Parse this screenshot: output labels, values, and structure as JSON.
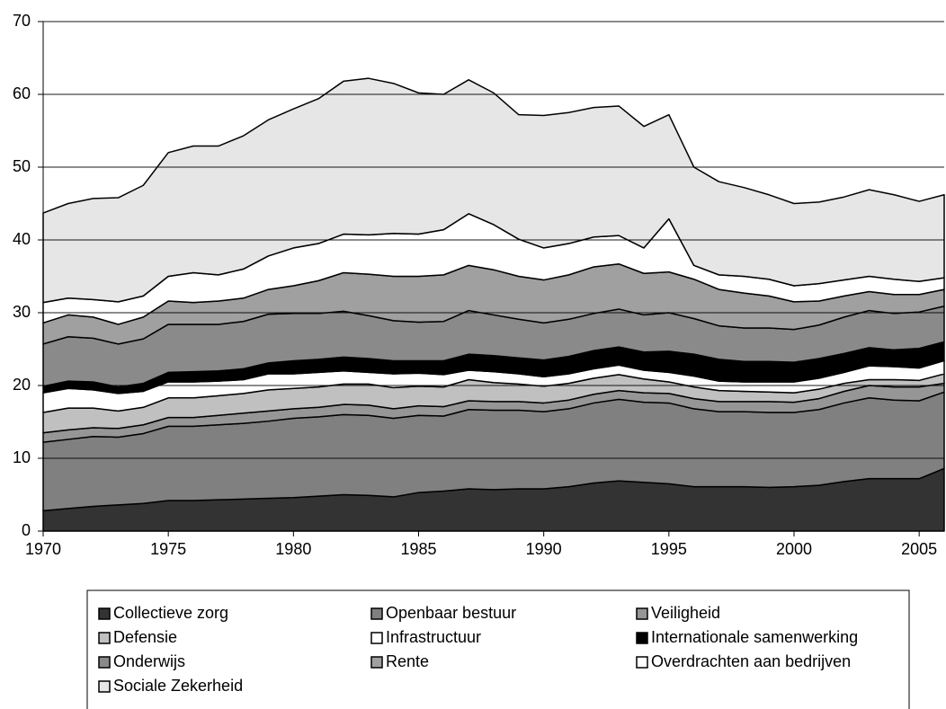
{
  "chart_data": {
    "type": "stacked_area",
    "x": [
      1970,
      1971,
      1972,
      1973,
      1974,
      1975,
      1976,
      1977,
      1978,
      1979,
      1980,
      1981,
      1982,
      1983,
      1984,
      1985,
      1986,
      1987,
      1988,
      1989,
      1990,
      1991,
      1992,
      1993,
      1994,
      1995,
      1996,
      1997,
      1998,
      1999,
      2000,
      2001,
      2002,
      2003,
      2004,
      2005,
      2006
    ],
    "xlim": [
      1970,
      2006
    ],
    "xticks": [
      1970,
      1975,
      1980,
      1985,
      1990,
      1995,
      2000,
      2005
    ],
    "ylim": [
      0,
      70
    ],
    "yticks": [
      0,
      10,
      20,
      30,
      40,
      50,
      60,
      70
    ],
    "grid": true,
    "legend": "bottom",
    "series": [
      {
        "name": "Collectieve zorg",
        "color": "#333333",
        "values": [
          2.8,
          3.1,
          3.4,
          3.6,
          3.8,
          4.2,
          4.2,
          4.3,
          4.4,
          4.5,
          4.6,
          4.8,
          5,
          4.9,
          4.7,
          5.3,
          5.5,
          5.8,
          5.7,
          5.8,
          5.8,
          6.1,
          6.6,
          6.9,
          6.7,
          6.5,
          6.1,
          6.1,
          6.1,
          6,
          6.1,
          6.3,
          6.8,
          7.2,
          7.2,
          7.2,
          8.6
        ]
      },
      {
        "name": "Openbaar bestuur",
        "color": "#808080",
        "values": [
          9.4,
          9.5,
          9.6,
          9.3,
          9.6,
          10.2,
          10.2,
          10.3,
          10.4,
          10.6,
          10.9,
          10.9,
          11,
          11,
          10.8,
          10.6,
          10.3,
          10.9,
          10.9,
          10.8,
          10.6,
          10.7,
          11,
          11.2,
          11,
          11.1,
          10.7,
          10.3,
          10.3,
          10.3,
          10.2,
          10.4,
          10.8,
          11.1,
          10.8,
          10.7,
          10.5
        ]
      },
      {
        "name": "Veiligheid",
        "color": "#969696",
        "values": [
          1.3,
          1.3,
          1.2,
          1.2,
          1.2,
          1.2,
          1.2,
          1.3,
          1.4,
          1.4,
          1.3,
          1.3,
          1.4,
          1.4,
          1.3,
          1.3,
          1.3,
          1.2,
          1.2,
          1.2,
          1.2,
          1.2,
          1.2,
          1.2,
          1.3,
          1.3,
          1.4,
          1.4,
          1.4,
          1.5,
          1.4,
          1.5,
          1.6,
          1.7,
          1.8,
          1.9,
          1.2
        ]
      },
      {
        "name": "Defensie",
        "color": "#c0c0c0",
        "values": [
          2.8,
          3,
          2.7,
          2.4,
          2.4,
          2.7,
          2.7,
          2.7,
          2.7,
          2.9,
          2.8,
          2.8,
          2.8,
          2.9,
          2.9,
          2.7,
          2.7,
          2.9,
          2.6,
          2.4,
          2.3,
          2.3,
          2.2,
          2.2,
          1.9,
          1.6,
          1.6,
          1.5,
          1.4,
          1.3,
          1.3,
          1.3,
          1.1,
          0.8,
          1.0,
          0.9,
          1.3
        ]
      },
      {
        "name": "Infrastructuur",
        "color": "#ffffff",
        "values": [
          2.7,
          2.7,
          2.5,
          2.4,
          2.2,
          2.2,
          2.2,
          2,
          1.9,
          2.2,
          2,
          2,
          1.8,
          1.6,
          1.9,
          1.8,
          1.7,
          1.3,
          1.5,
          1.4,
          1.3,
          1.3,
          1.3,
          1.3,
          1.2,
          1.3,
          1.5,
          1.3,
          1.3,
          1.4,
          1.5,
          1.5,
          1.5,
          1.9,
          1.8,
          1.7,
          1.8
        ]
      },
      {
        "name": "Internationale samenwerking",
        "color": "#000000",
        "values": [
          0.9,
          1,
          1.1,
          0.9,
          1.1,
          1.3,
          1.4,
          1.4,
          1.5,
          1.5,
          1.8,
          1.8,
          1.9,
          1.9,
          1.8,
          1.7,
          1.9,
          2.2,
          2.2,
          2.2,
          2.3,
          2.4,
          2.5,
          2.5,
          2.5,
          2.9,
          3,
          3,
          2.8,
          2.8,
          2.7,
          2.7,
          2.6,
          2.5,
          2.3,
          2.7,
          2.6
        ]
      },
      {
        "name": "Onderwijs",
        "color": "#8a8a8a",
        "values": [
          5.8,
          6.1,
          6,
          5.9,
          6.1,
          6.6,
          6.5,
          6.4,
          6.5,
          6.7,
          6.5,
          6.3,
          6.3,
          5.9,
          5.5,
          5.3,
          5.4,
          6,
          5.6,
          5.3,
          5.1,
          5.1,
          5.1,
          5.2,
          5.1,
          5.3,
          4.9,
          4.6,
          4.6,
          4.6,
          4.5,
          4.6,
          5,
          5.1,
          5,
          5,
          4.9
        ]
      },
      {
        "name": "Rente",
        "color": "#a0a0a0",
        "values": [
          2.9,
          3,
          2.9,
          2.7,
          3,
          3.2,
          3,
          3.2,
          3.2,
          3.4,
          3.8,
          4.5,
          5.3,
          5.7,
          6.1,
          6.3,
          6.4,
          6.2,
          6.2,
          5.9,
          5.9,
          6.1,
          6.4,
          6.2,
          5.7,
          5.6,
          5.4,
          5,
          4.8,
          4.4,
          3.8,
          3.3,
          2.9,
          2.6,
          2.6,
          2.4,
          2.3
        ]
      },
      {
        "name": "Overdrachten aan bedrijven",
        "color": "#ffffff",
        "values": [
          2.8,
          2.3,
          2.4,
          3.1,
          2.9,
          3.4,
          4.1,
          3.6,
          4,
          4.6,
          5.2,
          5.1,
          5.3,
          5.4,
          5.9,
          5.8,
          6.2,
          7.1,
          6.2,
          5.1,
          4.4,
          4.3,
          4.1,
          3.9,
          3.5,
          7.3,
          1.9,
          2,
          2.3,
          2.3,
          2.2,
          2.4,
          2.2,
          2.1,
          2.1,
          1.8,
          1.6
        ]
      },
      {
        "name": "Sociale Zekerheid",
        "color": "#e6e6e6",
        "values": [
          12.3,
          13,
          13.9,
          14.3,
          15.2,
          17,
          17.4,
          17.7,
          18.3,
          18.7,
          19.1,
          19.9,
          21,
          21.5,
          20.6,
          19.4,
          18.6,
          18.4,
          18.1,
          17.1,
          18.2,
          18,
          17.8,
          17.8,
          16.7,
          14.3,
          13.5,
          12.8,
          12.2,
          11.6,
          11.3,
          11.2,
          11.4,
          11.9,
          11.6,
          11,
          11.4
        ]
      }
    ]
  }
}
